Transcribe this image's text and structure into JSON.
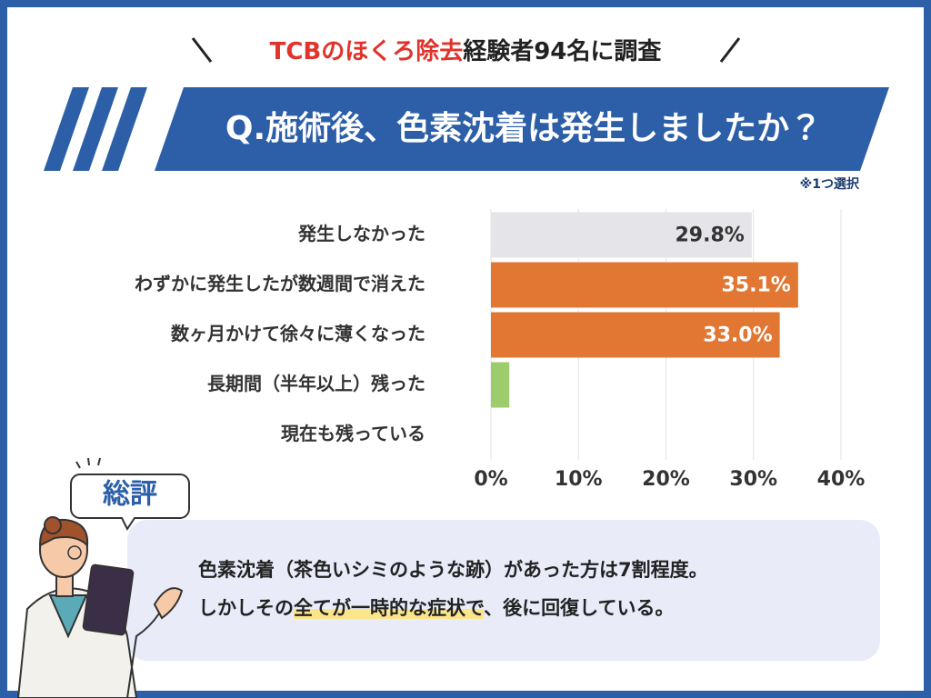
{
  "header": {
    "highlight": "TCBのほくろ除去",
    "rest": "経験者94名に調査"
  },
  "chart_data": {
    "type": "hbar",
    "title": "Q.施術後、色素沈着は発生しましたか？",
    "note": "※1つ選択",
    "categories": [
      "発生しなかった",
      "わずかに発生したが数週間で消えた",
      "数ヶ月かけて徐々に薄くなった",
      "長期間（半年以上）残った",
      "現在も残っている"
    ],
    "values": [
      29.8,
      35.1,
      33.0,
      2.1,
      0
    ],
    "value_labels": [
      "29.8%",
      "35.1%",
      "33.0%",
      null,
      null
    ],
    "colors": [
      "#e4e4e9",
      "#e27733",
      "#e27733",
      "#9ccc6c",
      null
    ],
    "xlim": [
      0,
      40
    ],
    "xticks": [
      {
        "value": 0,
        "label": "0%"
      },
      {
        "value": 10,
        "label": "10%"
      },
      {
        "value": 20,
        "label": "20%"
      },
      {
        "value": 30,
        "label": "30%"
      },
      {
        "value": 40,
        "label": "40%"
      }
    ],
    "grid": true
  },
  "summary": {
    "label": "総評",
    "line1": "色素沈着（茶色いシミのような跡）があった方は7割程度。",
    "line2_start": "しかしその",
    "line2_highlight": "全てが一時的な症状で",
    "line2_end": "、後に回復している。"
  }
}
